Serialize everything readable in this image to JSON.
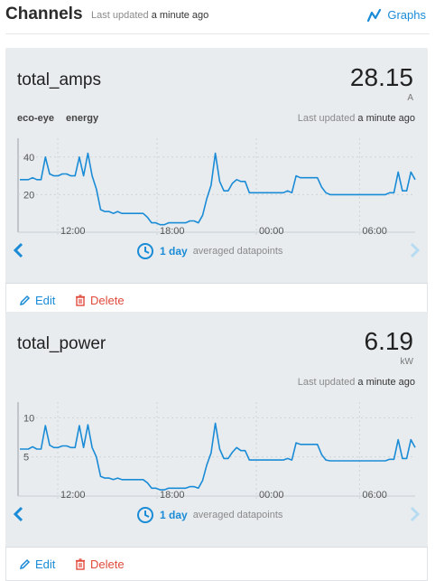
{
  "header": {
    "title": "Channels",
    "updated_prefix": "Last updated",
    "updated_value": "a minute ago",
    "graphs_label": "Graphs"
  },
  "colors": {
    "accent": "#1a8bd6",
    "danger": "#e04a3c",
    "card_bg": "#e8ecef"
  },
  "channels": [
    {
      "name": "total_amps",
      "value": "28.15",
      "unit": "A",
      "tags": [
        "eco-eye",
        "energy"
      ],
      "updated_prefix": "Last updated",
      "updated_value": "a minute ago",
      "range_label": "1 day",
      "range_sub": "averaged datapoints",
      "edit_label": "Edit",
      "delete_label": "Delete",
      "chart_data": {
        "type": "line",
        "x_ticks": [
          "12:00",
          "18:00",
          "00:00",
          "06:00"
        ],
        "y_ticks": [
          "40",
          "20"
        ],
        "ylim": [
          0,
          50
        ],
        "values": [
          28,
          28,
          28,
          29,
          28,
          28,
          40,
          31,
          30,
          30,
          31,
          31,
          30,
          30,
          40,
          30,
          42,
          30,
          23,
          12,
          11,
          11,
          10,
          11,
          10,
          10,
          10,
          10,
          10,
          10,
          8,
          5,
          5,
          4,
          4,
          5,
          5,
          5,
          5,
          5,
          6,
          6,
          5,
          9,
          18,
          25,
          42,
          27,
          22,
          22,
          26,
          28,
          27,
          27,
          21,
          21,
          21,
          21,
          21,
          21,
          21,
          21,
          21,
          22,
          21,
          30,
          29,
          29,
          29,
          29,
          29,
          24,
          21,
          20,
          20,
          20,
          20,
          20,
          20,
          20,
          20,
          20,
          20,
          20,
          20,
          20,
          20,
          21,
          21,
          32,
          22,
          22,
          32,
          28
        ]
      }
    },
    {
      "name": "total_power",
      "value": "6.19",
      "unit": "kW",
      "tags": [],
      "updated_prefix": "Last updated",
      "updated_value": "a minute ago",
      "range_label": "1 day",
      "range_sub": "averaged datapoints",
      "edit_label": "Edit",
      "delete_label": "Delete",
      "chart_data": {
        "type": "line",
        "x_ticks": [
          "12:00",
          "18:00",
          "00:00",
          "06:00"
        ],
        "y_ticks": [
          "10",
          "5"
        ],
        "ylim": [
          0,
          12
        ],
        "values": [
          6,
          6,
          6,
          6.3,
          6,
          6,
          9,
          6.5,
          6.2,
          6.2,
          6.4,
          6.4,
          6.2,
          6.2,
          9,
          6.2,
          9.1,
          6.2,
          5,
          2.5,
          2.3,
          2.3,
          2.1,
          2.3,
          2.1,
          2.1,
          2.1,
          2.1,
          2.1,
          2.1,
          1.7,
          1,
          1,
          0.8,
          0.8,
          1,
          1,
          1,
          1,
          1,
          1.2,
          1.2,
          1,
          2,
          4,
          5.5,
          9.3,
          6,
          4.8,
          4.8,
          5.6,
          6.2,
          5.8,
          5.8,
          4.6,
          4.6,
          4.6,
          4.6,
          4.6,
          4.6,
          4.6,
          4.6,
          4.6,
          4.8,
          4.6,
          6.8,
          6.6,
          6.6,
          6.6,
          6.6,
          6.6,
          5.3,
          4.6,
          4.5,
          4.5,
          4.5,
          4.5,
          4.5,
          4.5,
          4.5,
          4.5,
          4.5,
          4.5,
          4.5,
          4.5,
          4.5,
          4.5,
          4.7,
          4.7,
          7.2,
          4.8,
          4.8,
          7.2,
          6.2
        ]
      }
    }
  ]
}
